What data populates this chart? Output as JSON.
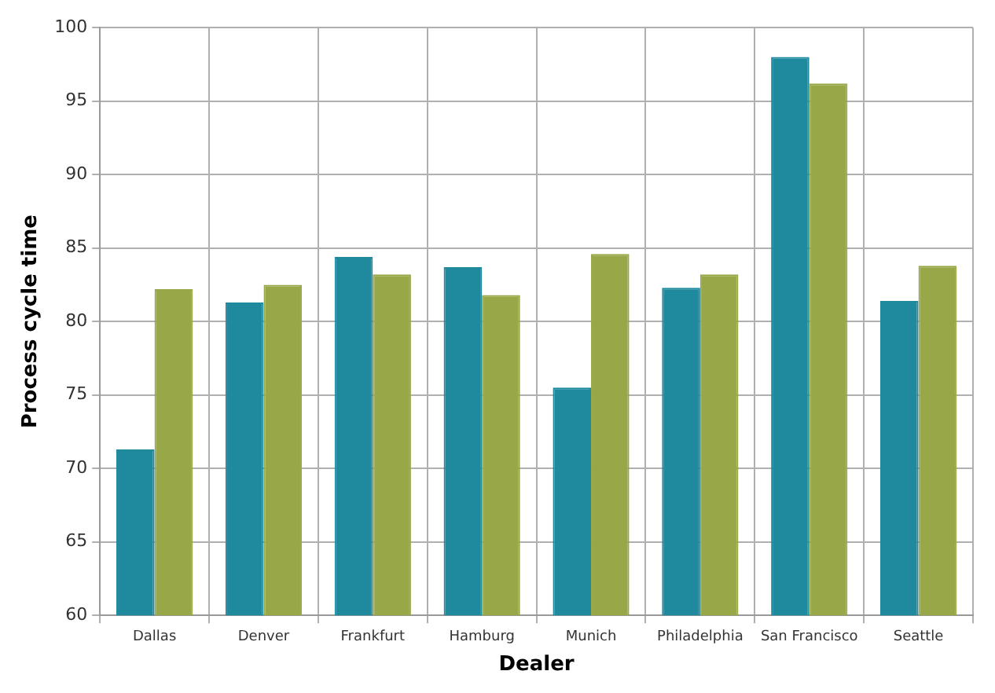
{
  "chart_data": {
    "type": "bar",
    "xlabel": "Dealer",
    "ylabel": "Process cycle time",
    "categories": [
      "Dallas",
      "Denver",
      "Frankfurt",
      "Hamburg",
      "Munich",
      "Philadelphia",
      "San Francisco",
      "Seattle"
    ],
    "series": [
      {
        "color": "#1f8a9e",
        "values": [
          71.3,
          81.3,
          84.4,
          83.7,
          75.5,
          82.3,
          98.0,
          81.4
        ]
      },
      {
        "color": "#98a848",
        "values": [
          82.2,
          82.5,
          83.2,
          81.8,
          84.6,
          83.2,
          96.2,
          83.8
        ]
      }
    ],
    "ylim": [
      60,
      100
    ],
    "yticks": [
      60,
      65,
      70,
      75,
      80,
      85,
      90,
      95,
      100
    ],
    "grid": true,
    "legend": false
  }
}
